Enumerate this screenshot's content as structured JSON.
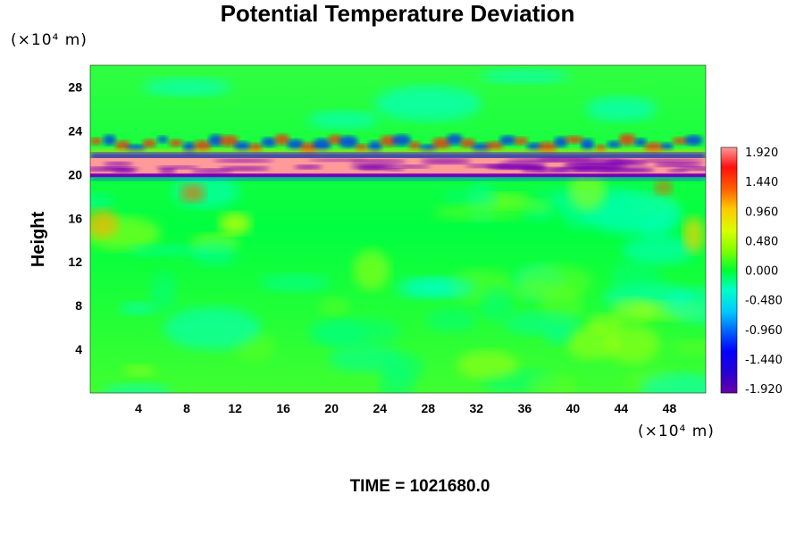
{
  "chart_data": {
    "type": "heatmap",
    "title": "Potential Temperature Deviation",
    "ylabel": "Height",
    "x_unit": "(×10⁴ m)",
    "y_unit": "(×10⁴ m)",
    "xlim": [
      0,
      51
    ],
    "ylim": [
      0,
      30
    ],
    "x_ticks": [
      "4",
      "8",
      "12",
      "16",
      "20",
      "24",
      "28",
      "32",
      "36",
      "40",
      "44",
      "48"
    ],
    "y_ticks": [
      "4",
      "8",
      "12",
      "16",
      "20",
      "24",
      "28"
    ],
    "colorbar": {
      "min": -1.92,
      "max": 1.92,
      "ticks": [
        "1.920",
        "1.440",
        "0.960",
        "0.480",
        "0.000",
        "-0.480",
        "-0.960",
        "-1.440",
        "-1.920"
      ]
    },
    "colors": {
      "background_field": "#00ff30",
      "positive_peak": "#ff9a9a",
      "negative_peak": "#7a00b8"
    },
    "features": [
      {
        "layer": "strong alternating band",
        "height_range": [
          20,
          21.5
        ],
        "x_range": [
          0,
          51
        ]
      },
      {
        "layer": "wave disturbance band",
        "height_range": [
          22,
          24
        ],
        "x_range": [
          0,
          51
        ]
      },
      {
        "layer": "weak perturbations",
        "height_range": [
          0,
          20
        ],
        "x_range": [
          0,
          51
        ]
      }
    ],
    "time_label": "TIME = 1021680.0"
  }
}
